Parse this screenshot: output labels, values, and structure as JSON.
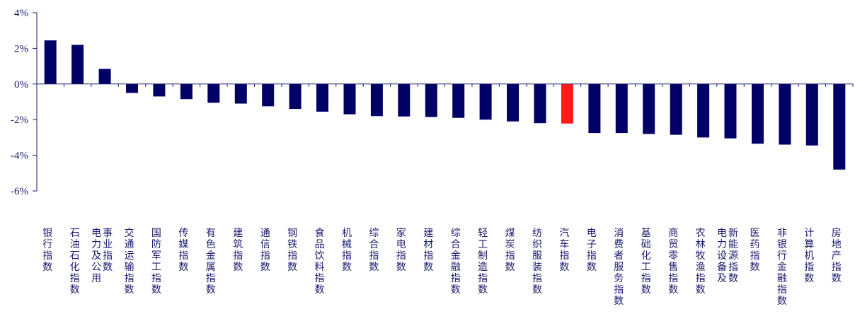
{
  "chart_data": {
    "type": "bar",
    "title": "",
    "xlabel": "",
    "ylabel": "",
    "ylim": [
      -6,
      4
    ],
    "yticks": [
      "4%",
      "2%",
      "0%",
      "-2%",
      "-4%",
      "-6%"
    ],
    "ytick_values": [
      4,
      2,
      0,
      -2,
      -4,
      -6
    ],
    "grid": false,
    "bar_color": "#000066",
    "highlight_color": "#ff1a1a",
    "highlight_category": "汽车指数",
    "axis_color": "#1a1a6e",
    "categories": [
      "银行指数",
      "石油石化指数",
      "电力及公用事业指数",
      "交通运输指数",
      "国防军工指数",
      "传媒指数",
      "有色金属指数",
      "建筑指数",
      "通信指数",
      "钢铁指数",
      "食品饮料指数",
      "机械指数",
      "综合指数",
      "家电指数",
      "建材指数",
      "综合金融指数",
      "轻工制造指数",
      "煤炭指数",
      "纺织服装指数",
      "汽车指数",
      "电子指数",
      "消费者服务指数",
      "基础化工指数",
      "商贸零售指数",
      "农林牧渔指数",
      "电力设备及新能源指数",
      "医药指数",
      "非银行金融指数",
      "计算机指数",
      "房地产指数"
    ],
    "values": [
      2.45,
      2.2,
      0.85,
      -0.5,
      -0.7,
      -0.85,
      -1.05,
      -1.1,
      -1.25,
      -1.4,
      -1.55,
      -1.7,
      -1.8,
      -1.82,
      -1.85,
      -1.9,
      -2.0,
      -2.1,
      -2.2,
      -2.22,
      -2.75,
      -2.75,
      -2.8,
      -2.85,
      -3.0,
      -3.05,
      -3.35,
      -3.4,
      -3.45,
      -4.8
    ]
  }
}
